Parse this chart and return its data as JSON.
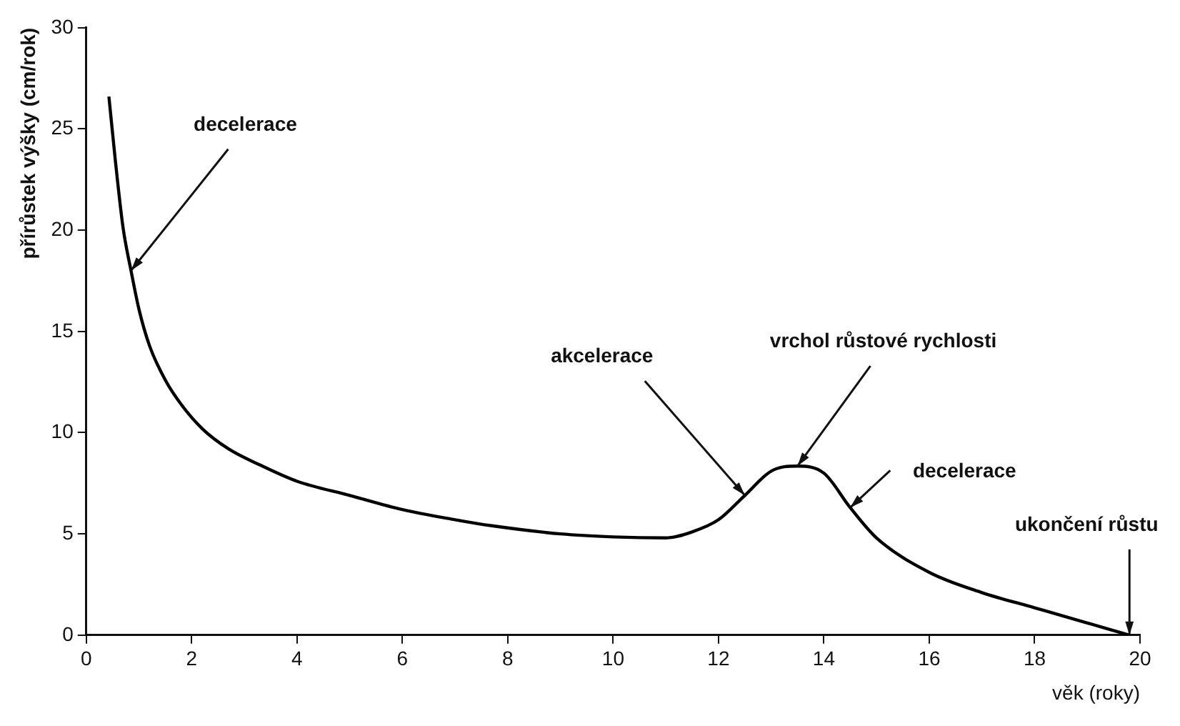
{
  "chart_data": {
    "type": "line",
    "xlabel": "věk (roky)",
    "ylabel": "přírůstek výšky (cm/rok)",
    "x": [
      0.43,
      0.55,
      0.7,
      0.85,
      1.0,
      1.2,
      1.5,
      1.8,
      2.2,
      2.7,
      3.3,
      4,
      5,
      6,
      7,
      7.7,
      9,
      10,
      11,
      11.5,
      12,
      12.5,
      13,
      13.5,
      14,
      14.5,
      15,
      16,
      17,
      18,
      19,
      19.8
    ],
    "series": [
      {
        "color": "#000000",
        "values": [
          26.6,
          23.5,
          20.1,
          18,
          16.1,
          14.3,
          12.6,
          11.4,
          10.2,
          9.2,
          8.4,
          7.6,
          6.9,
          6.2,
          5.7,
          5.4,
          5.0,
          4.85,
          4.8,
          5.1,
          5.7,
          6.9,
          8.1,
          8.35,
          8.0,
          6.3,
          4.8,
          3.1,
          2.1,
          1.35,
          0.6,
          0
        ]
      }
    ],
    "xlim": [
      0,
      20
    ],
    "xticks": [
      0,
      2,
      4,
      6,
      8,
      10,
      12,
      14,
      16,
      18,
      20
    ],
    "ylim": [
      0,
      30
    ],
    "yticks": [
      0,
      5,
      10,
      15,
      20,
      25,
      30
    ],
    "grid": false,
    "legend": false,
    "marker": "none",
    "line_style": "solid",
    "annotations": [
      {
        "text": "decelerace",
        "x": 0.85,
        "y": 18
      },
      {
        "text": "akcelerace",
        "x": 12.5,
        "y": 6.9
      },
      {
        "text": "vrchol růstové rychlosti",
        "x": 13.5,
        "y": 8.35
      },
      {
        "text": "decelerace",
        "x": 14.5,
        "y": 6.3
      },
      {
        "text": "ukončení růstu",
        "x": 19.8,
        "y": 0
      }
    ]
  }
}
